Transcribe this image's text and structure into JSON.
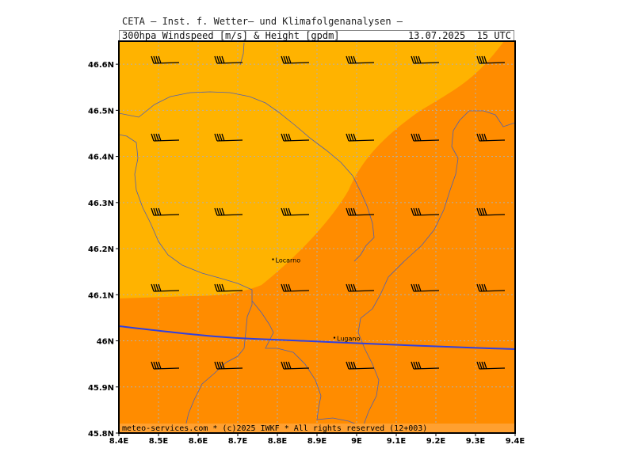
{
  "header": {
    "title": "CETA — Inst. f. Wetter— und Klimafolgenanalysen —",
    "parameter": "300hpa_Windspeed_[m/s]_&_Height_[gpdm]",
    "valid_time": "13.07.2025  15 UTC"
  },
  "footer": {
    "text": "meteo-services.com * (c)2025 IWKF * All rights reserved (12+003)"
  },
  "axes": {
    "lon_labels": [
      "8.4E",
      "8.5E",
      "8.6E",
      "8.7E",
      "8.8E",
      "8.9E",
      "9E",
      "9.1E",
      "9.2E",
      "9.3E",
      "9.4E"
    ],
    "lat_labels": [
      "46.6N",
      "46.5N",
      "46.4N",
      "46.3N",
      "46.2N",
      "46.1N",
      "46N",
      "45.9N",
      "45.8N"
    ],
    "lon_range": [
      8.4,
      9.4
    ],
    "lat_range": [
      45.8,
      46.65
    ]
  },
  "cities": [
    {
      "name": "Locarno",
      "lon": 8.795,
      "lat": 46.17
    },
    {
      "name": "Lugano",
      "lon": 8.95,
      "lat": 46.0
    }
  ],
  "colors": {
    "zone_light": "#ffb300",
    "zone_dark": "#ff8c00",
    "footer_band": "#ffa030",
    "grid": "#b0b0b0",
    "border": "#5060b0",
    "height_contour": "#3040e0"
  }
}
